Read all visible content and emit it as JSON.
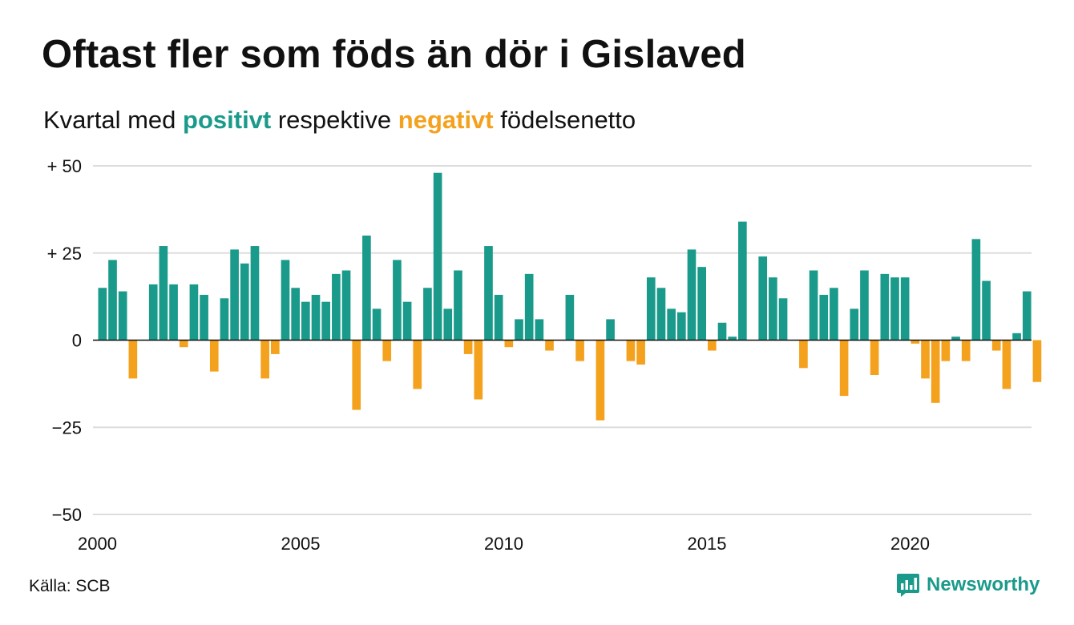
{
  "title": "Oftast fler som föds än dör i Gislaved",
  "subtitle": {
    "prefix": "Kvartal med ",
    "positive": "positivt",
    "middle": " respektive ",
    "negative": "negativt",
    "suffix": " födelsenetto"
  },
  "source": "Källa: SCB",
  "brand": {
    "name": "Newsworthy",
    "icon": "bar-chart-speech-bubble-icon"
  },
  "colors": {
    "positive": "#1a9a8a",
    "negative": "#f4a11d",
    "grid": "#dddddd",
    "zero": "#111111"
  },
  "chart_data": {
    "type": "bar",
    "x_start": "2000-Q1",
    "x_ticks": [
      2000,
      2005,
      2010,
      2015,
      2020
    ],
    "x_tick_labels": [
      "2000",
      "2005",
      "2010",
      "2015",
      "2020"
    ],
    "y_ticks": [
      50,
      25,
      0,
      -25,
      -50
    ],
    "y_tick_labels": [
      "+ 50",
      "+ 25",
      "0",
      "−25",
      "−50"
    ],
    "ylim": [
      -50,
      50
    ],
    "grid": true,
    "values": [
      15,
      23,
      14,
      -11,
      0,
      16,
      27,
      16,
      -2,
      16,
      13,
      -9,
      12,
      26,
      22,
      27,
      -11,
      -4,
      23,
      15,
      11,
      13,
      11,
      19,
      20,
      -20,
      30,
      9,
      -6,
      23,
      11,
      -14,
      15,
      48,
      9,
      20,
      -4,
      -17,
      27,
      13,
      -2,
      6,
      19,
      6,
      -3,
      0,
      13,
      -6,
      0,
      -23,
      6,
      0,
      -6,
      -7,
      18,
      15,
      9,
      8,
      26,
      21,
      -3,
      5,
      1,
      34,
      0,
      24,
      18,
      12,
      0,
      -8,
      20,
      13,
      15,
      -16,
      9,
      20,
      -10,
      19,
      18,
      18,
      -1,
      -11,
      -18,
      -6,
      1,
      -6,
      29,
      17,
      -3,
      -14,
      2,
      14,
      -12
    ]
  }
}
